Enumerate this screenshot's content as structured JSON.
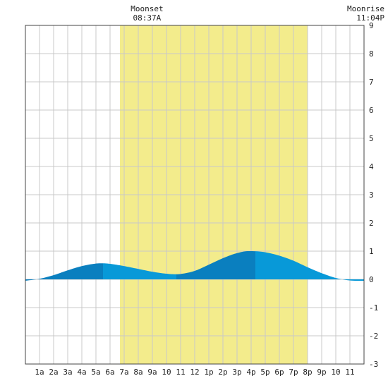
{
  "chart_data": {
    "type": "area",
    "title": "",
    "xlabel": "",
    "ylabel": "",
    "ylim": [
      -3,
      9
    ],
    "yticks": [
      -3,
      -2,
      -1,
      0,
      1,
      2,
      3,
      4,
      5,
      6,
      7,
      8,
      9
    ],
    "xlim": [
      0,
      24
    ],
    "xtick_positions": [
      1,
      2,
      3,
      4,
      5,
      6,
      7,
      8,
      9,
      10,
      11,
      12,
      13,
      14,
      15,
      16,
      17,
      18,
      19,
      20,
      21,
      22,
      23
    ],
    "xtick_labels": [
      "1a",
      "2a",
      "3a",
      "4a",
      "5a",
      "6a",
      "7a",
      "8a",
      "9a",
      "10",
      "11",
      "12",
      "1p",
      "2p",
      "3p",
      "4p",
      "5p",
      "6p",
      "7p",
      "8p",
      "9p",
      "10",
      "11"
    ],
    "grid": true,
    "daylight_band": {
      "start": 6.7,
      "end": 20.0,
      "color": "#f3ec8c"
    },
    "events": [
      {
        "name": "Moonset",
        "time": "08:37A",
        "x": 8.62
      },
      {
        "name": "Moonrise",
        "time": "11:04P",
        "x": 23.07
      }
    ],
    "tide_curve": {
      "x": [
        0,
        1,
        2,
        3,
        4,
        5,
        5.5,
        6,
        7,
        8,
        9,
        10,
        10.7,
        11,
        12,
        13,
        14,
        15,
        15.8,
        16.5,
        17,
        18,
        19,
        20,
        21,
        22,
        23,
        24
      ],
      "y": [
        -0.05,
        0.02,
        0.15,
        0.32,
        0.47,
        0.56,
        0.57,
        0.55,
        0.47,
        0.37,
        0.27,
        0.2,
        0.18,
        0.19,
        0.3,
        0.52,
        0.75,
        0.93,
        1.0,
        0.99,
        0.96,
        0.84,
        0.66,
        0.43,
        0.22,
        0.05,
        -0.04,
        -0.05
      ]
    },
    "tide_segments": [
      {
        "start": 0,
        "end": 5.5,
        "shade": "dark"
      },
      {
        "start": 5.5,
        "end": 10.7,
        "shade": "light"
      },
      {
        "start": 10.7,
        "end": 16.3,
        "shade": "dark"
      },
      {
        "start": 16.3,
        "end": 24,
        "shade": "light"
      }
    ],
    "colors": {
      "tide_dark": "#0a7fbf",
      "tide_light": "#0899d8",
      "grid": "#c8c8c8",
      "frame": "#444444"
    }
  }
}
